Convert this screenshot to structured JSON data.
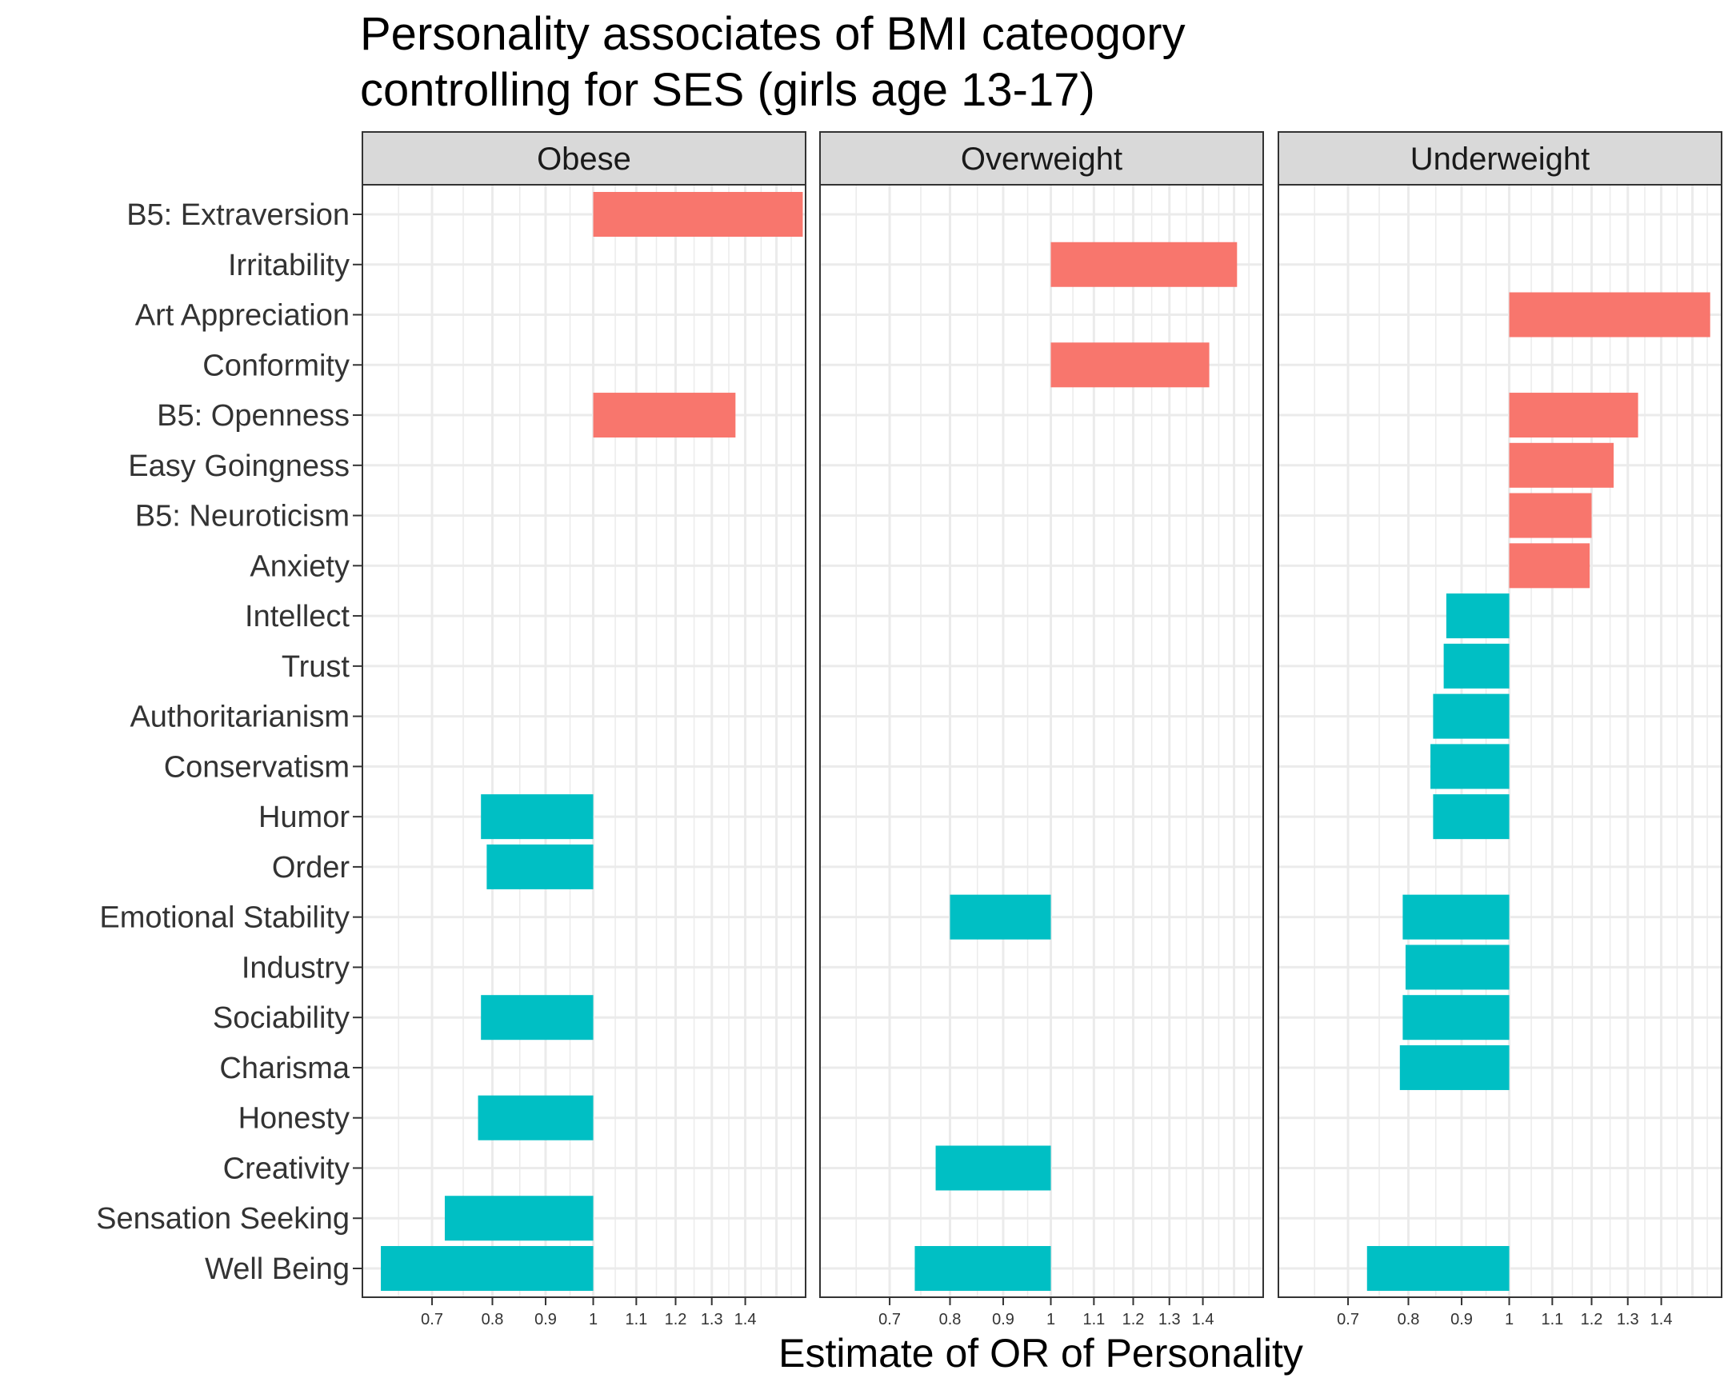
{
  "chart_data": {
    "type": "bar",
    "orientation": "horizontal",
    "title": [
      "Personality associates of BMI cateogory",
      "controlling for SES (girls age 13-17)"
    ],
    "xlabel": "Estimate of OR of Personality",
    "ylabel": "",
    "x_scale": "log",
    "xlim": [
      0.6,
      1.6
    ],
    "xtick_labels": [
      "0.7",
      "0.8",
      "0.9",
      "1",
      "1.1",
      "1.2",
      "1.3",
      "1.4"
    ],
    "xtick_values": [
      0.7,
      0.8,
      0.9,
      1.0,
      1.1,
      1.2,
      1.3,
      1.4
    ],
    "baseline": 1,
    "grid": true,
    "colors": {
      "positive": "#F8766D",
      "negative": "#00BFC4"
    },
    "categories": [
      "B5: Extraversion",
      "Irritability",
      "Art Appreciation",
      "Conformity",
      "B5: Openness",
      "Easy Goingness",
      "B5: Neuroticism",
      "Anxiety",
      "Intellect",
      "Trust",
      "Authoritarianism",
      "Conservatism",
      "Humor",
      "Order",
      "Emotional Stability",
      "Industry",
      "Sociability",
      "Charisma",
      "Honesty",
      "Creativity",
      "Sensation Seeking",
      "Well Being"
    ],
    "panels": [
      {
        "name": "Obese",
        "values": [
          1.59,
          null,
          null,
          null,
          1.37,
          null,
          null,
          null,
          null,
          null,
          null,
          null,
          0.78,
          0.79,
          null,
          null,
          0.78,
          null,
          0.775,
          null,
          0.72,
          0.625
        ]
      },
      {
        "name": "Overweight",
        "values": [
          null,
          1.51,
          null,
          1.42,
          null,
          null,
          null,
          null,
          null,
          null,
          null,
          null,
          null,
          null,
          0.8,
          null,
          null,
          null,
          null,
          0.775,
          null,
          0.74
        ]
      },
      {
        "name": "Underweight",
        "values": [
          null,
          null,
          1.56,
          null,
          1.33,
          1.26,
          1.2,
          1.195,
          0.87,
          0.865,
          0.845,
          0.84,
          0.845,
          null,
          0.79,
          0.795,
          0.79,
          0.785,
          null,
          null,
          null,
          0.73
        ]
      }
    ]
  }
}
